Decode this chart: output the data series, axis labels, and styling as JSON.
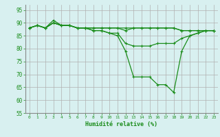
{
  "series": [
    {
      "x": [
        0,
        1,
        2,
        3,
        4,
        5,
        6,
        7,
        8,
        9,
        10,
        11,
        12,
        13,
        14,
        15,
        16,
        17,
        18,
        19,
        20,
        21,
        22,
        23
      ],
      "y": [
        88,
        89,
        88,
        91,
        89,
        89,
        88,
        88,
        88,
        88,
        88,
        88,
        88,
        88,
        88,
        88,
        88,
        88,
        88,
        87,
        87,
        87,
        87,
        87
      ]
    },
    {
      "x": [
        0,
        1,
        2,
        3,
        4,
        5,
        6,
        7,
        8,
        9,
        10,
        11,
        12,
        13,
        14,
        15,
        16,
        17,
        18,
        19,
        20,
        21,
        22,
        23
      ],
      "y": [
        88,
        89,
        88,
        90,
        89,
        89,
        88,
        88,
        88,
        88,
        88,
        88,
        87,
        88,
        88,
        88,
        88,
        88,
        88,
        87,
        87,
        87,
        87,
        87
      ]
    },
    {
      "x": [
        0,
        1,
        2,
        3,
        4,
        5,
        6,
        7,
        8,
        9,
        10,
        11,
        12,
        13,
        14,
        15,
        16,
        17,
        18,
        19,
        20,
        21,
        22,
        23
      ],
      "y": [
        88,
        89,
        88,
        90,
        89,
        89,
        88,
        88,
        87,
        87,
        86,
        85,
        79,
        69,
        69,
        69,
        66,
        66,
        63,
        79,
        85,
        86,
        87,
        87
      ]
    },
    {
      "x": [
        0,
        1,
        2,
        3,
        4,
        5,
        6,
        7,
        8,
        9,
        10,
        11,
        12,
        13,
        14,
        15,
        16,
        17,
        18,
        19,
        20,
        21,
        22,
        23
      ],
      "y": [
        88,
        89,
        88,
        90,
        89,
        89,
        88,
        88,
        87,
        87,
        86,
        86,
        82,
        81,
        81,
        81,
        82,
        82,
        82,
        84,
        85,
        86,
        87,
        87
      ]
    }
  ],
  "xlabel": "Humidité relative (%)",
  "xlim": [
    -0.5,
    23.5
  ],
  "ylim": [
    55,
    97
  ],
  "yticks": [
    55,
    60,
    65,
    70,
    75,
    80,
    85,
    90,
    95
  ],
  "xticks": [
    0,
    1,
    2,
    3,
    4,
    5,
    6,
    7,
    8,
    9,
    10,
    11,
    12,
    13,
    14,
    15,
    16,
    17,
    18,
    19,
    20,
    21,
    22,
    23
  ],
  "grid_color": "#b0b0b0",
  "bg_color": "#d8f0f0",
  "line_color": "#1a8c1a",
  "marker_size": 2.5,
  "line_width": 0.9
}
